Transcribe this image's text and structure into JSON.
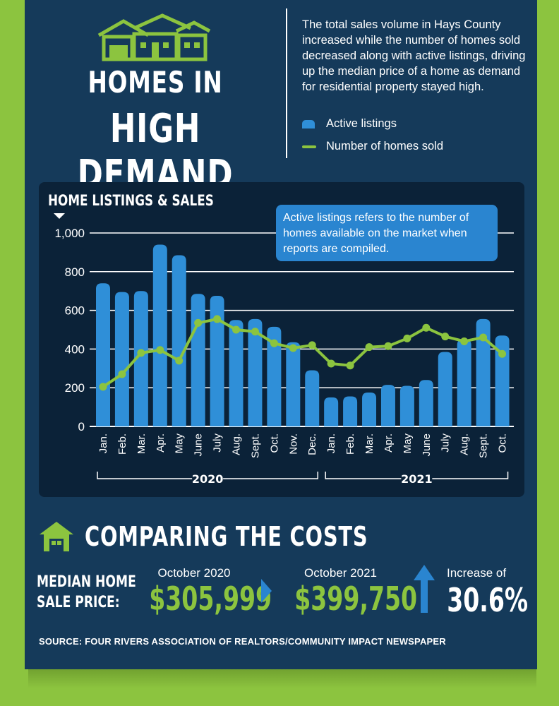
{
  "header": {
    "title_line1": "HOMES IN",
    "title_line2": "HIGH DEMAND",
    "intro": "The total sales volume in Hays County increased while the number of homes sold decreased along with active listings, driving up the median price of a home as demand for residential property stayed high.",
    "legend_active": "Active listings",
    "legend_sold": "Number of homes sold"
  },
  "chart_data": {
    "type": "bar",
    "title": "HOME LISTINGS & SALES",
    "callout": "Active listings refers to the number of homes available on the market when reports are compiled.",
    "categories": [
      "Jan.",
      "Feb.",
      "Mar.",
      "Apr.",
      "May",
      "June",
      "July",
      "Aug.",
      "Sept.",
      "Oct.",
      "Nov.",
      "Dec.",
      "Jan.",
      "Feb.",
      "Mar.",
      "Apr.",
      "May",
      "June",
      "July",
      "Aug.",
      "Sept.",
      "Oct."
    ],
    "year_groups": [
      {
        "label": "2020",
        "start": 0,
        "end": 11
      },
      {
        "label": "2021",
        "start": 12,
        "end": 21
      }
    ],
    "series": [
      {
        "name": "Active listings",
        "kind": "bar",
        "color": "#2f8fd8",
        "values": [
          740,
          695,
          700,
          940,
          885,
          685,
          675,
          550,
          555,
          515,
          435,
          290,
          150,
          155,
          175,
          215,
          210,
          240,
          385,
          450,
          555,
          470
        ]
      },
      {
        "name": "Number of homes sold",
        "kind": "line",
        "color": "#8cc43f",
        "values": [
          205,
          270,
          380,
          395,
          340,
          535,
          555,
          500,
          490,
          430,
          405,
          420,
          325,
          315,
          410,
          415,
          455,
          510,
          465,
          440,
          460,
          375
        ]
      }
    ],
    "ylim": [
      0,
      1000
    ],
    "yticks": [
      0,
      200,
      400,
      600,
      800,
      1000
    ],
    "ytick_labels": [
      "0",
      "200",
      "400",
      "600",
      "800",
      "1,000"
    ],
    "grid": true
  },
  "costs": {
    "title": "COMPARING THE COSTS",
    "label_line1": "MEDIAN HOME",
    "label_line2": "SALE PRICE:",
    "period1": "October 2020",
    "price1": "$305,999",
    "period2": "October 2021",
    "price2": "$399,750",
    "increase_label": "Increase of",
    "increase_value": "30.6%"
  },
  "source": "SOURCE: FOUR RIVERS ASSOCIATION OF REALTORS/COMMUNITY IMPACT NEWSPAPER",
  "colors": {
    "background": "#8cc43f",
    "panel": "#153a5a",
    "chart_bg": "#0b2238",
    "accent_blue": "#2a85d0",
    "accent_green": "#8cc43f"
  }
}
